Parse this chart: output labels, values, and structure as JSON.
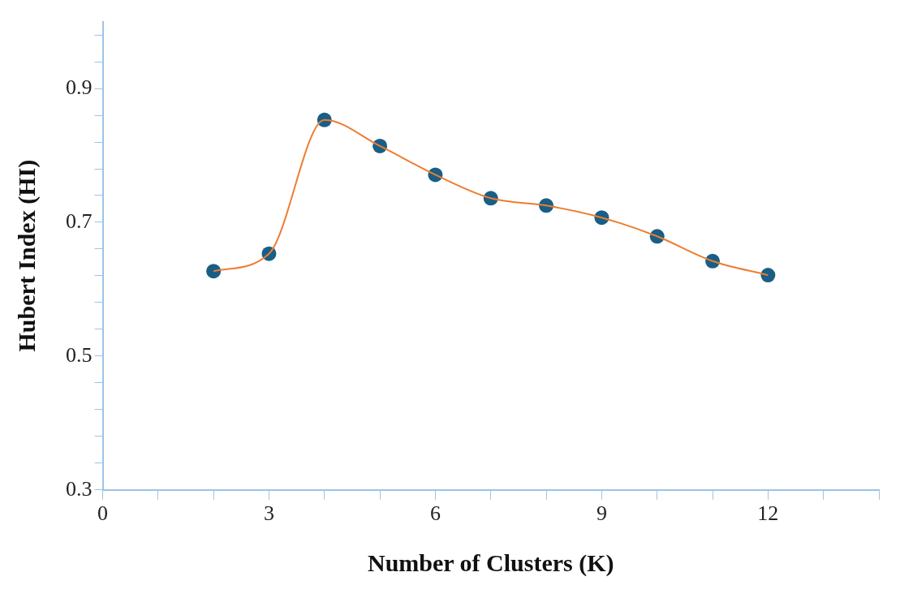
{
  "chart_data": {
    "type": "line",
    "xlabel": "Number of Clusters (K)",
    "ylabel": "Hubert Index (HI)",
    "x": [
      2,
      3,
      4,
      5,
      6,
      7,
      8,
      9,
      10,
      11,
      12
    ],
    "series": [
      {
        "color": "#ed7d31",
        "marker": "none",
        "values": [
          0.627,
          0.653,
          0.853,
          0.814,
          0.771,
          0.736,
          0.725,
          0.707,
          0.679,
          0.642,
          0.621
        ]
      },
      {
        "type": "scatter",
        "marker": "circle",
        "color": "#1a5e86",
        "values": [
          0.627,
          0.653,
          0.853,
          0.814,
          0.771,
          0.736,
          0.725,
          0.707,
          0.679,
          0.642,
          0.621
        ]
      }
    ],
    "xlim": [
      0,
      14
    ],
    "xticks": [
      0,
      {
        "value": 1,
        "label": null
      },
      {
        "value": 2,
        "label": null
      },
      3,
      {
        "value": 4,
        "label": null
      },
      {
        "value": 5,
        "label": null
      },
      6,
      {
        "value": 7,
        "label": null
      },
      {
        "value": 8,
        "label": null
      },
      9,
      {
        "value": 10,
        "label": null
      },
      {
        "value": 11,
        "label": null
      },
      12,
      {
        "value": 13,
        "label": null
      },
      {
        "value": 14,
        "label": null
      }
    ],
    "ylim": [
      0.3,
      1.0
    ],
    "yticks": [
      0.3,
      {
        "value": 0.34,
        "label": null
      },
      {
        "value": 0.38,
        "label": null
      },
      {
        "value": 0.42,
        "label": null
      },
      {
        "value": 0.46,
        "label": null
      },
      0.5,
      {
        "value": 0.54,
        "label": null
      },
      {
        "value": 0.58,
        "label": null
      },
      {
        "value": 0.62,
        "label": null
      },
      {
        "value": 0.66,
        "label": null
      },
      0.7,
      {
        "value": 0.74,
        "label": null
      },
      {
        "value": 0.78,
        "label": null
      },
      {
        "value": 0.82,
        "label": null
      },
      {
        "value": 0.86,
        "label": null
      },
      0.9,
      {
        "value": 0.94,
        "label": null
      },
      {
        "value": 0.98,
        "label": null
      }
    ],
    "grid": false,
    "legend": false
  }
}
